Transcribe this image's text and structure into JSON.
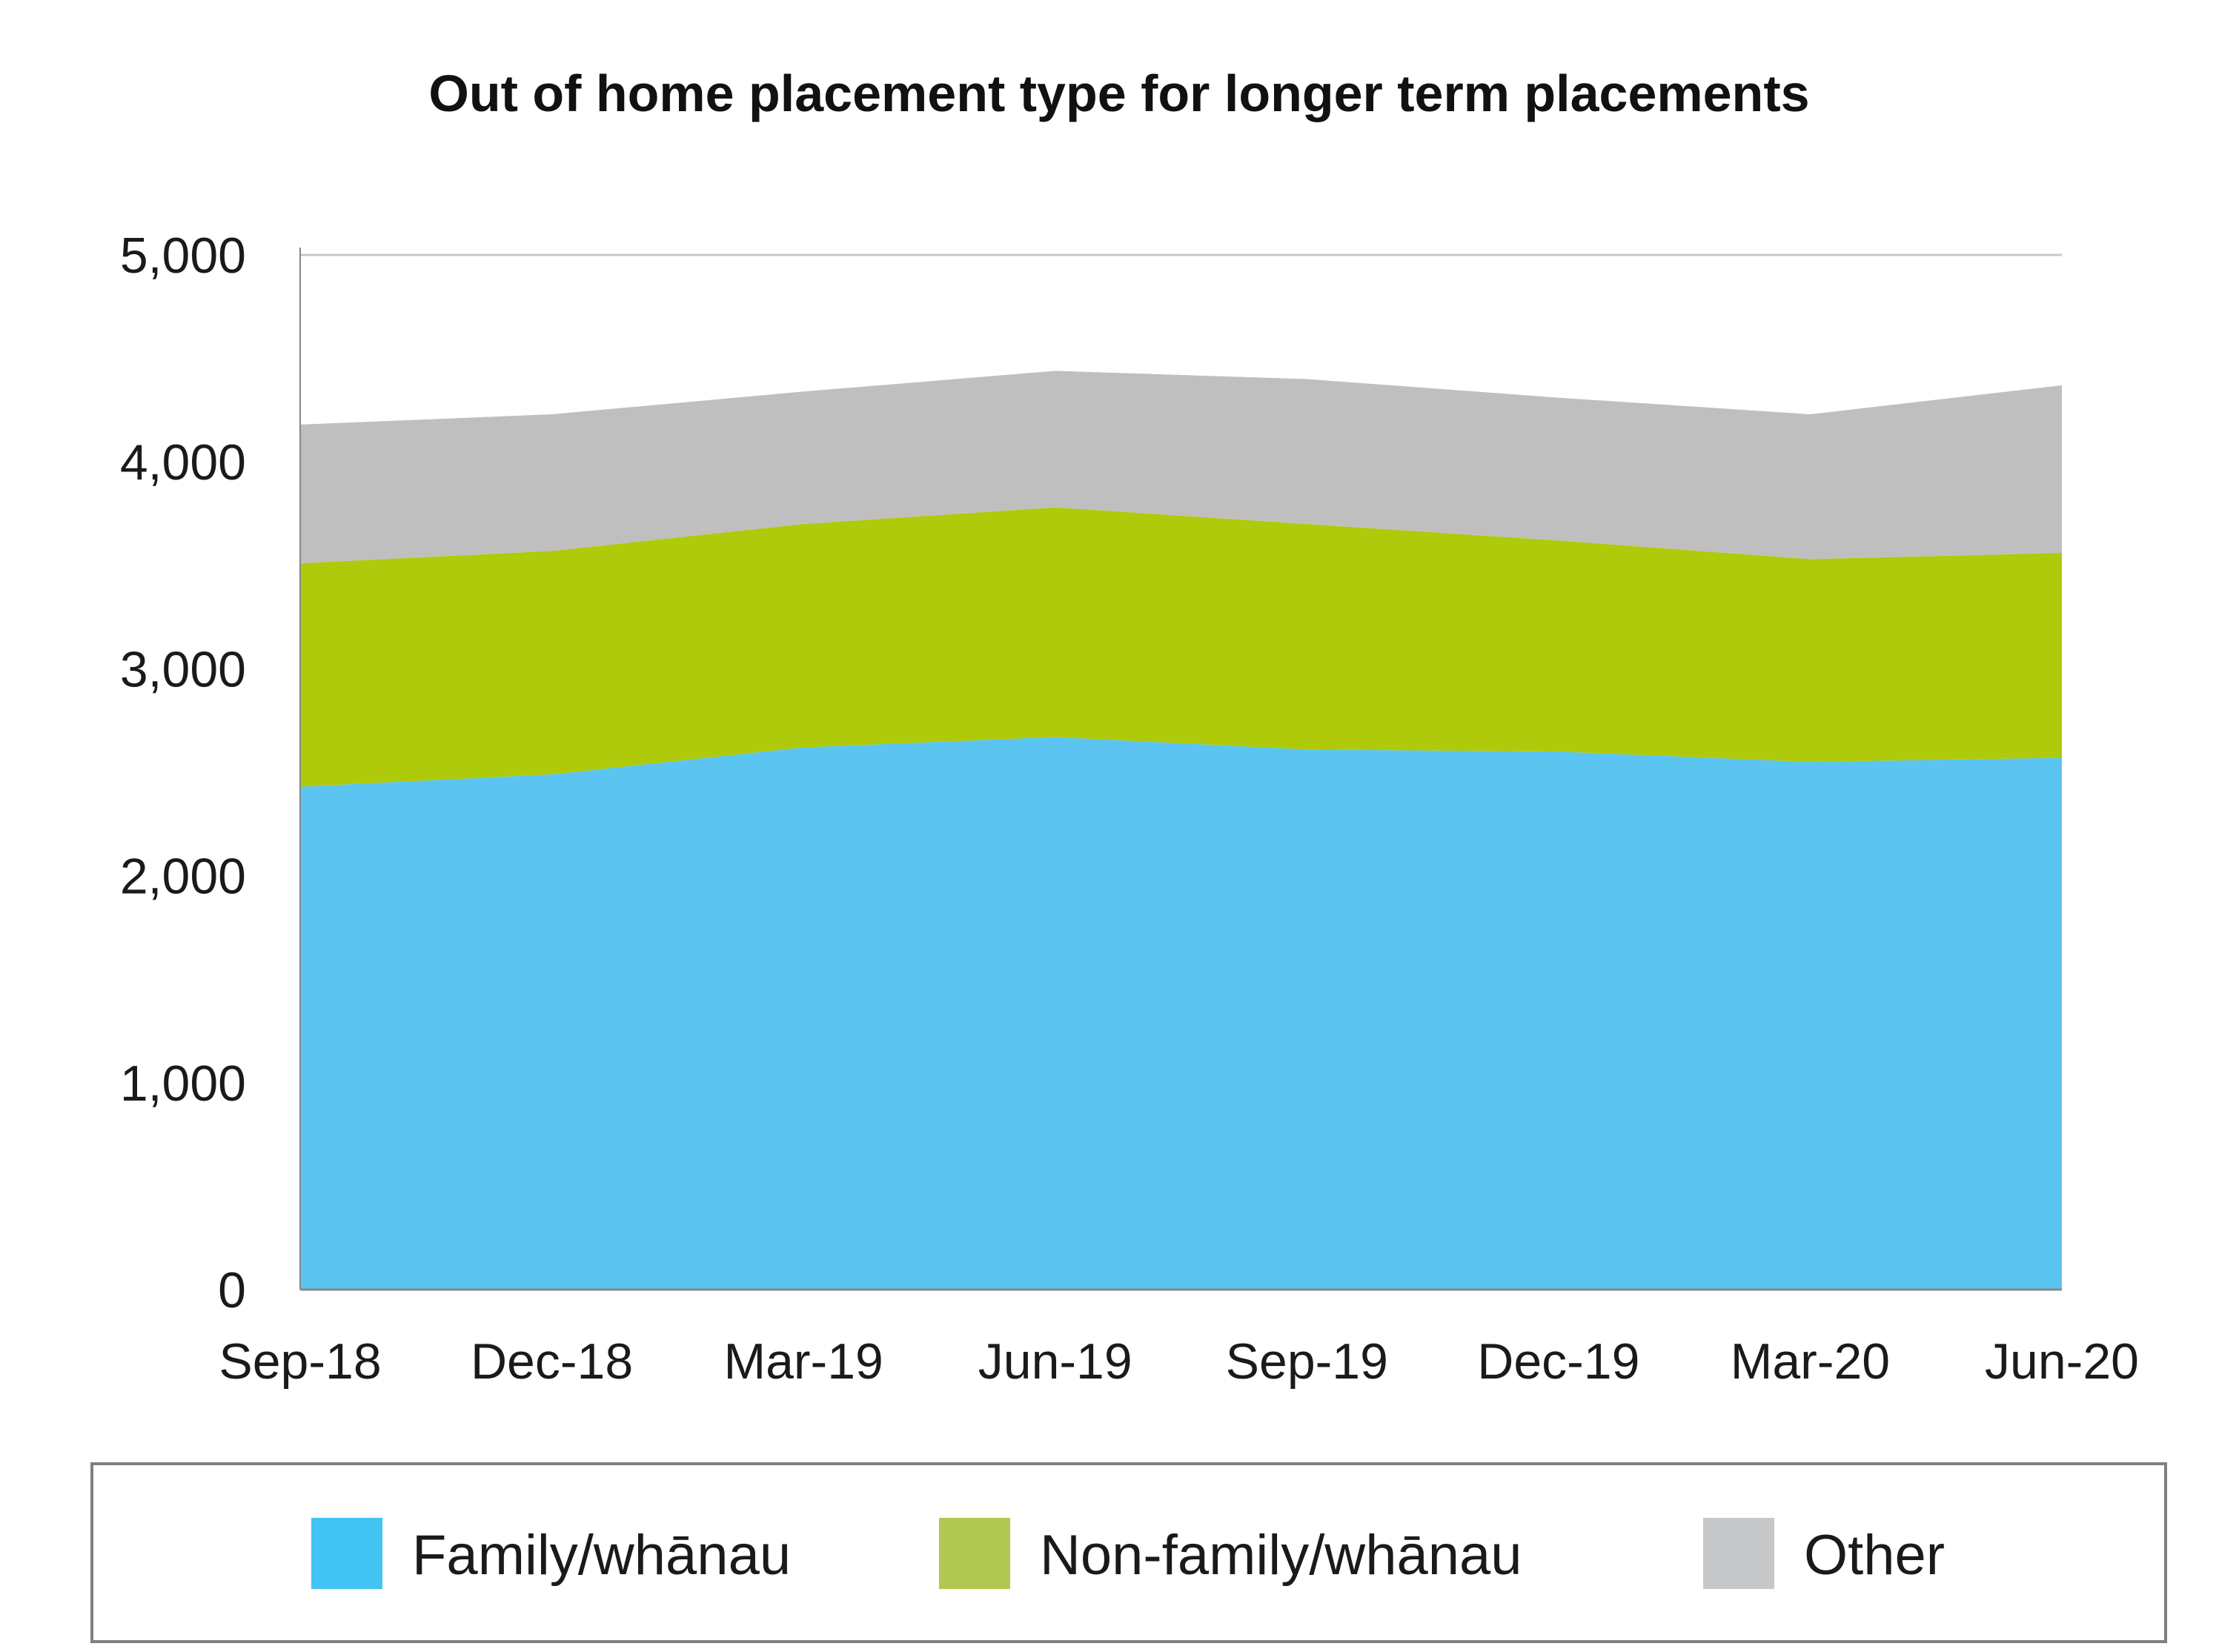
{
  "chart_data": {
    "type": "area",
    "stacked": true,
    "title": "Out of home placement type for longer term placements",
    "xlabel": "",
    "ylabel": "",
    "x": [
      "Sep-18",
      "Dec-18",
      "Mar-19",
      "Jun-19",
      "Sep-19",
      "Dec-19",
      "Mar-20",
      "Jun-20"
    ],
    "ylim": [
      0,
      5000
    ],
    "yticks": [
      0,
      1000,
      2000,
      3000,
      4000,
      5000
    ],
    "ytick_labels": [
      "0",
      "1,000",
      "2,000",
      "3,000",
      "4,000",
      "5,000"
    ],
    "grid": "horizontal",
    "legend_position": "bottom",
    "series": [
      {
        "name": "Family/whānau",
        "color": "#5bc4f1",
        "legend_color": "#41c3f3",
        "values": [
          2430,
          2490,
          2620,
          2670,
          2610,
          2600,
          2550,
          2570
        ]
      },
      {
        "name": "Non-family/whānau",
        "color": "#afca0b",
        "legend_color": "#b1c752",
        "values": [
          1080,
          1080,
          1080,
          1110,
          1090,
          1020,
          980,
          990
        ]
      },
      {
        "name": "Other",
        "color": "#bfbfbf",
        "legend_color": "#c7c8ca",
        "values": [
          670,
          660,
          640,
          660,
          700,
          690,
          700,
          810
        ]
      }
    ],
    "colors": {
      "gridline": "#c8c8c8",
      "axis": "#888888",
      "legend_border": "#7f7f7f"
    }
  }
}
